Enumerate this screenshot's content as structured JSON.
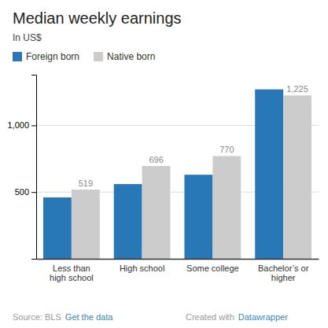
{
  "chart_data": {
    "type": "bar",
    "title": "Median weekly earnings",
    "subtitle": "In US$",
    "categories": [
      "Less than\nhigh school",
      "High school",
      "Some college",
      "Bachelor’s or\nhigher"
    ],
    "series": [
      {
        "name": "Foreign born",
        "color": "#2878b8",
        "values": [
          460,
          560,
          630,
          1270
        ]
      },
      {
        "name": "Native born",
        "color": "#cccccc",
        "values": [
          519,
          696,
          770,
          1225
        ],
        "data_labels": true,
        "value_labels": [
          "519",
          "696",
          "770",
          "1,225"
        ]
      }
    ],
    "ylim": [
      0,
      1380
    ],
    "yticks": [
      500,
      {
        "value": 1000,
        "label": "1,000"
      }
    ],
    "grid": true,
    "legend": "top left",
    "annotations": [
      "Source: BLS ",
      "Get the data",
      "Created with ",
      "Datawrapper"
    ]
  }
}
